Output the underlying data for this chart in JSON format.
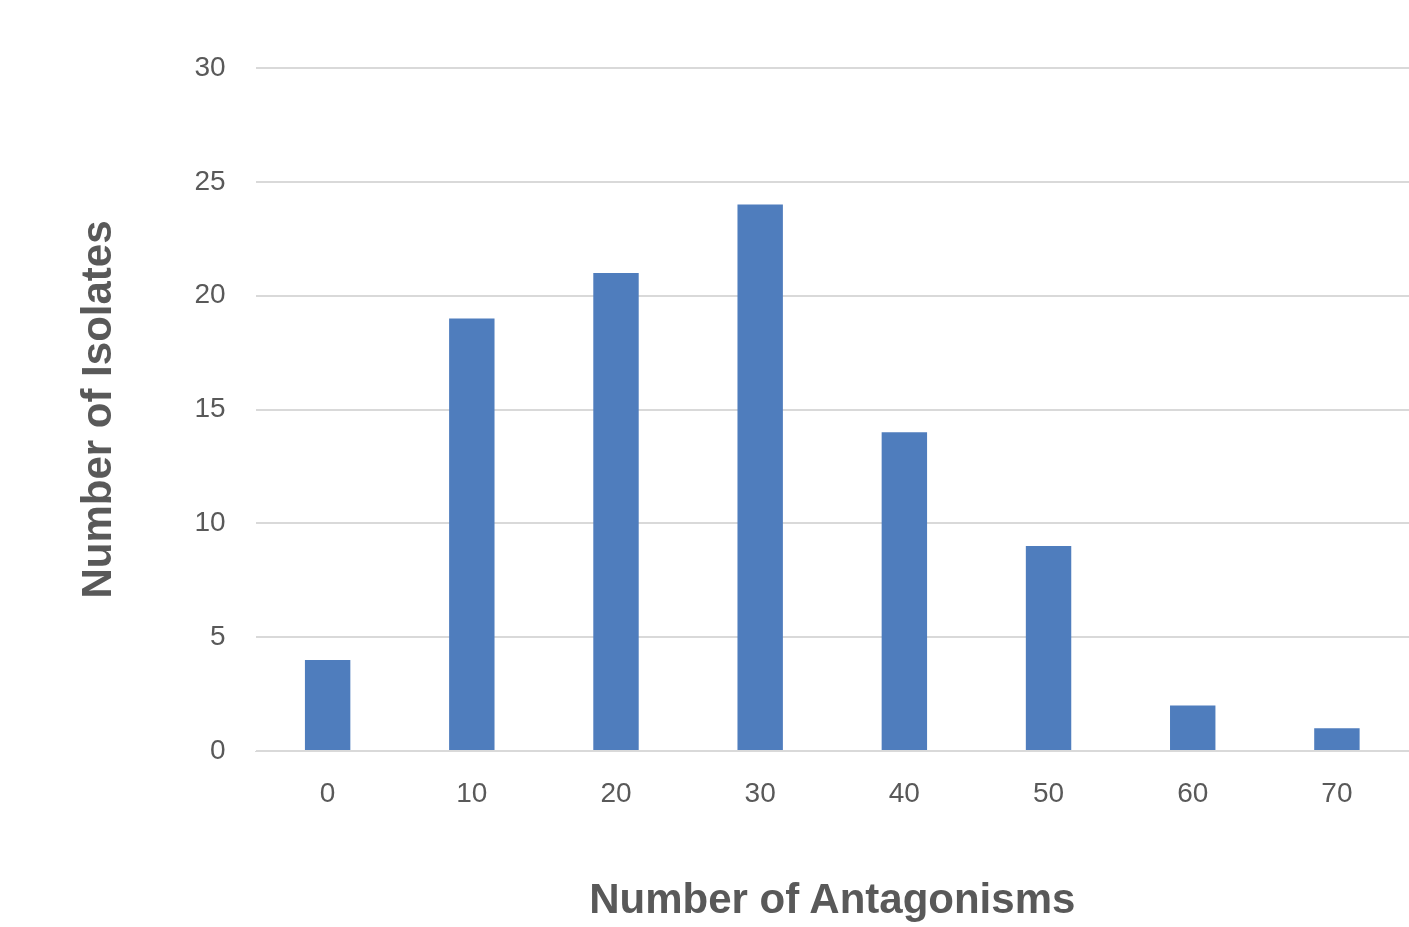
{
  "chart_data": {
    "type": "bar",
    "categories": [
      "0",
      "10",
      "20",
      "30",
      "40",
      "50",
      "60",
      "70"
    ],
    "values": [
      4,
      19,
      21,
      24,
      14,
      9,
      2,
      1
    ],
    "color": "#4f7dbd",
    "xlabel": "Number of Antagonisms",
    "ylabel": "Number of Isolates",
    "ylim": [
      0,
      30
    ],
    "yticks": [
      0,
      5,
      10,
      15,
      20,
      25,
      30
    ],
    "grid": "y",
    "legend": false
  }
}
